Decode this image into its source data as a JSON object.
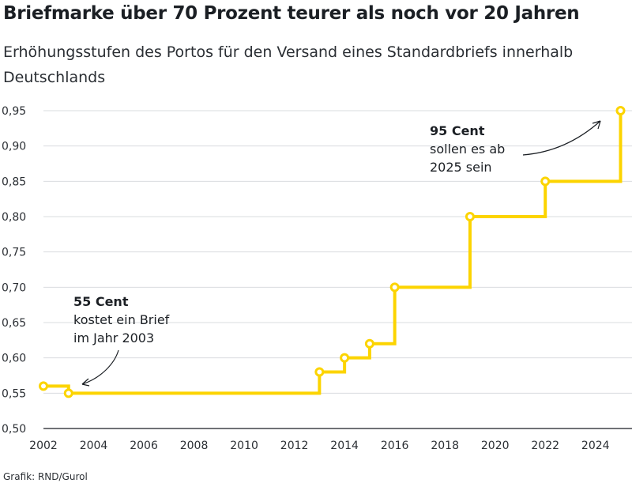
{
  "chart_data": {
    "type": "line",
    "step": true,
    "title": "Briefmarke über 70 Prozent teurer als noch vor 20 Jahren",
    "subtitle": "Erhöhungsstufen des Portos für den Versand eines Standardbriefs innerhalb Deutschlands",
    "series": [
      {
        "x": [
          2002,
          2003,
          2013,
          2014,
          2015,
          2016,
          2019,
          2022,
          2025
        ],
        "values": [
          0.56,
          0.55,
          0.58,
          0.6,
          0.62,
          0.7,
          0.8,
          0.85,
          0.95
        ],
        "color": "#fcd400"
      }
    ],
    "xlim": [
      2002,
      2025.3
    ],
    "ylim": [
      0.5,
      0.95
    ],
    "xticks": [
      "2002",
      "2004",
      "2006",
      "2008",
      "2010",
      "2012",
      "2014",
      "2016",
      "2018",
      "2020",
      "2022",
      "2024"
    ],
    "yticks": [
      "0,50",
      "0,55",
      "0,60",
      "0,65",
      "0,70",
      "0,75",
      "0,80",
      "0,85",
      "0,90",
      "0,95"
    ],
    "grid": true,
    "annotations": [
      {
        "bold": "55 Cent",
        "lines": [
          "kostet ein Brief",
          "im Jahr 2003"
        ],
        "target_x": 2003,
        "target_y": 0.55
      },
      {
        "bold": "95 Cent",
        "lines": [
          "sollen es ab",
          "2025 sein"
        ],
        "target_x": 2025,
        "target_y": 0.95
      }
    ]
  },
  "credit": "Grafik: RND/Gurol"
}
